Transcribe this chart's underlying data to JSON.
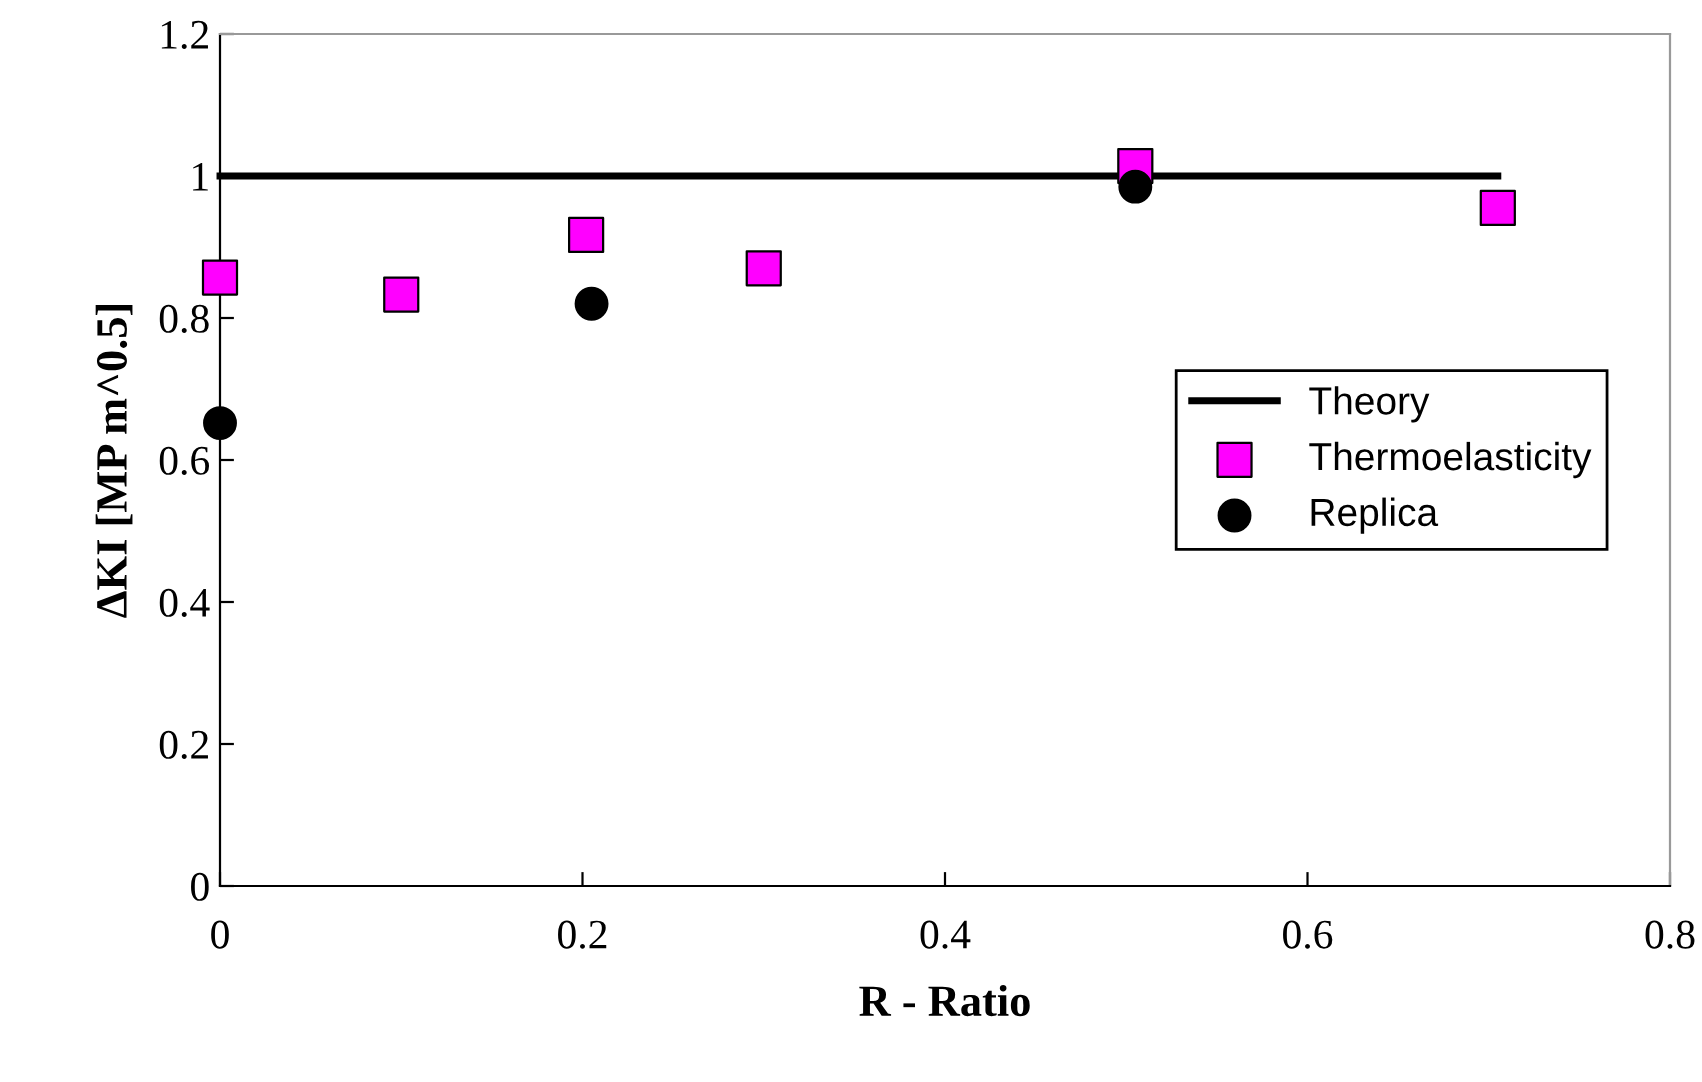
{
  "chart_data": {
    "type": "scatter",
    "xlabel": "R - Ratio",
    "ylabel": "ΔKI [MP m^0.5]",
    "xlim": [
      0,
      0.8
    ],
    "ylim": [
      0,
      1.2
    ],
    "xticks": [
      0,
      0.2,
      0.4,
      0.6,
      0.8
    ],
    "yticks": [
      0,
      0.2,
      0.4,
      0.6,
      0.8,
      1,
      1.2
    ],
    "grid": false,
    "legend": "right",
    "series": [
      {
        "name": "Theory",
        "type": "line",
        "color": "#000000",
        "marker": "none",
        "x": [
          0,
          0.705
        ],
        "values": [
          1,
          1
        ]
      },
      {
        "name": "Thermoelasticity",
        "color": "#ff00ff",
        "marker": "square",
        "x": [
          0,
          0.1,
          0.202,
          0.3,
          0.505,
          0.705
        ],
        "values": [
          0.857,
          0.833,
          0.917,
          0.87,
          1.014,
          0.955
        ]
      },
      {
        "name": "Replica",
        "color": "#000000",
        "marker": "circle",
        "x": [
          0,
          0.205,
          0.505
        ],
        "values": [
          0.652,
          0.82,
          0.985
        ]
      }
    ]
  }
}
